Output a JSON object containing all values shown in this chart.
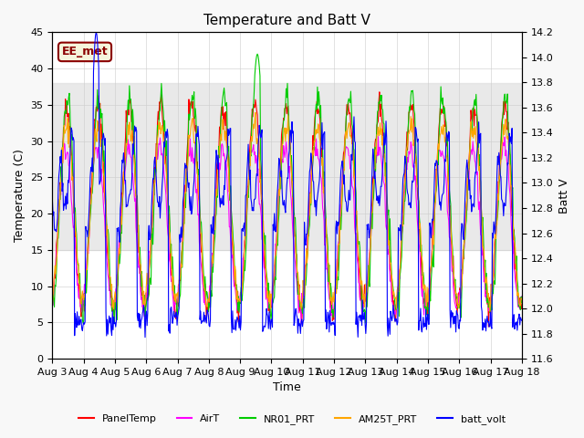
{
  "title": "Temperature and Batt V",
  "xlabel": "Time",
  "ylabel_left": "Temperature (C)",
  "ylabel_right": "Batt V",
  "ylim_left": [
    0,
    45
  ],
  "ylim_right": [
    11.6,
    14.2
  ],
  "xlim": [
    0,
    15
  ],
  "x_tick_labels": [
    "Aug 3",
    "Aug 4",
    "Aug 5",
    "Aug 6",
    "Aug 7",
    "Aug 8",
    "Aug 9",
    "Aug 10",
    "Aug 11",
    "Aug 12",
    "Aug 13",
    "Aug 14",
    "Aug 15",
    "Aug 16",
    "Aug 17",
    "Aug 18"
  ],
  "shaded_region": [
    15,
    38
  ],
  "annotation_box": "EE_met",
  "annotation_color": "#8B0000",
  "annotation_bg": "#f5f5dc",
  "legend_labels": [
    "PanelTemp",
    "AirT",
    "NR01_PRT",
    "AM25T_PRT",
    "batt_volt"
  ],
  "legend_colors": [
    "#FF0000",
    "#FF00FF",
    "#00CC00",
    "#FFA500",
    "#0000FF"
  ],
  "bg_color": "#f8f8f8",
  "plot_bg": "#ffffff",
  "grid_color": "#cccccc",
  "n_days": 15,
  "pts_per_day": 48,
  "yticks_right": [
    11.6,
    11.8,
    12.0,
    12.2,
    12.4,
    12.6,
    12.8,
    13.0,
    13.2,
    13.4,
    13.6,
    13.8,
    14.0,
    14.2
  ],
  "yticks_left": [
    0,
    5,
    10,
    15,
    20,
    25,
    30,
    35,
    40,
    45
  ]
}
